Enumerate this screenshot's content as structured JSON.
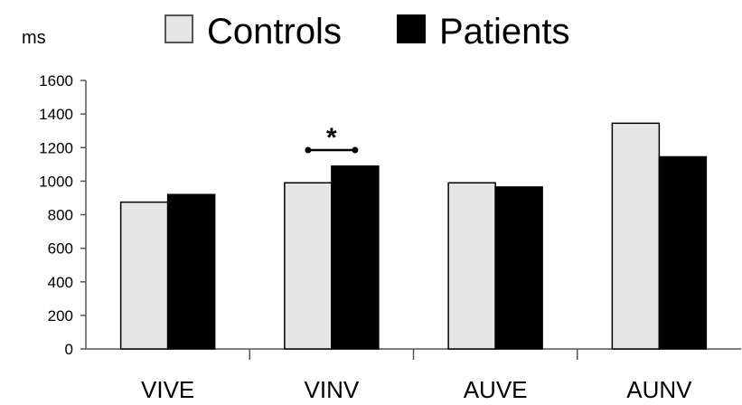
{
  "chart_data": {
    "type": "bar",
    "categories": [
      "VIVE",
      "VINV",
      "AUVE",
      "AUNV"
    ],
    "series": [
      {
        "name": "Controls",
        "values": [
          875,
          990,
          990,
          1345
        ],
        "color": "#e6e6e6"
      },
      {
        "name": "Patients",
        "values": [
          920,
          1090,
          965,
          1145
        ],
        "color": "#000000"
      }
    ],
    "ylabel": "ms",
    "ylim": [
      0,
      1600
    ],
    "yticks": [
      0,
      200,
      400,
      600,
      800,
      1000,
      1200,
      1400,
      1600
    ],
    "grid": false,
    "legend_placement": "top-center",
    "annotations": [
      {
        "text": "*",
        "category": "VINV",
        "type": "significance-bracket"
      }
    ]
  }
}
